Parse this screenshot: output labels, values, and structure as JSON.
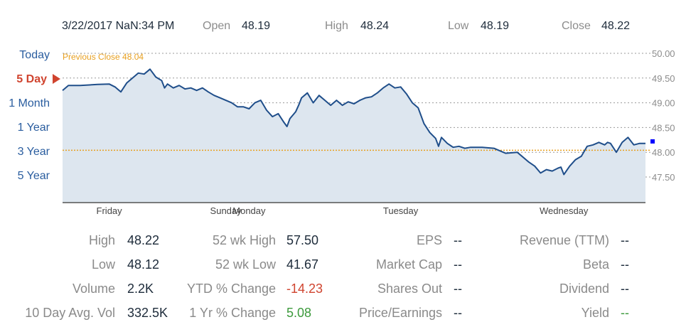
{
  "header": {
    "datetime": "3/22/2017 NaN:34 PM",
    "open_label": "Open",
    "open_value": "48.19",
    "high_label": "High",
    "high_value": "48.24",
    "low_label": "Low",
    "low_value": "48.19",
    "close_label": "Close",
    "close_value": "48.22"
  },
  "ranges": [
    {
      "label": "Today",
      "active": false
    },
    {
      "label": "5 Day",
      "active": true
    },
    {
      "label": "1 Month",
      "active": false
    },
    {
      "label": "1 Year",
      "active": false
    },
    {
      "label": "3 Year",
      "active": false
    },
    {
      "label": "5 Year",
      "active": false
    }
  ],
  "colors": {
    "line": "#1f4e8a",
    "area": "#dde6ef",
    "previous_close": "#e8a020",
    "active_range": "#d0442f",
    "range_text": "#2a5d9f",
    "current_marker": "#0000ff",
    "negative": "#d0442f",
    "positive": "#3c9a3c"
  },
  "chart_data": {
    "type": "area",
    "previous_close_label": "Previous Close 48.04",
    "previous_close": 48.04,
    "ylim": [
      47.3,
      50.0
    ],
    "yticks": [
      "50.00",
      "49.50",
      "49.00",
      "48.50",
      "48.00",
      "47.50"
    ],
    "xticks": [
      {
        "label": "Friday",
        "x": 0.08
      },
      {
        "label": "Sunday",
        "x": 0.28
      },
      {
        "label": "Monday",
        "x": 0.32
      },
      {
        "label": "Tuesday",
        "x": 0.58
      },
      {
        "label": "Wednesday",
        "x": 0.86
      }
    ],
    "xlim": [
      0,
      1
    ],
    "grid": true,
    "series": [
      {
        "x": [
          0.0,
          0.01,
          0.03,
          0.06,
          0.08,
          0.09,
          0.1,
          0.11,
          0.115,
          0.12,
          0.13,
          0.14,
          0.15,
          0.16,
          0.17,
          0.175,
          0.18,
          0.19,
          0.2,
          0.21,
          0.22,
          0.23,
          0.24,
          0.25,
          0.26,
          0.27,
          0.28,
          0.29,
          0.3,
          0.31,
          0.32,
          0.33,
          0.34,
          0.35,
          0.36,
          0.37,
          0.38,
          0.385,
          0.39,
          0.4,
          0.405,
          0.41,
          0.42,
          0.43,
          0.44,
          0.45,
          0.46,
          0.47,
          0.48,
          0.49,
          0.5,
          0.51,
          0.52,
          0.53,
          0.54,
          0.55,
          0.56,
          0.57,
          0.58,
          0.59,
          0.6,
          0.61,
          0.62,
          0.63,
          0.64,
          0.645,
          0.65,
          0.66,
          0.67,
          0.68,
          0.69,
          0.7,
          0.72,
          0.74,
          0.76,
          0.78,
          0.8,
          0.81,
          0.82,
          0.83,
          0.84,
          0.85,
          0.855,
          0.86,
          0.87,
          0.88,
          0.89,
          0.9,
          0.91,
          0.92,
          0.93,
          0.935,
          0.94,
          0.95,
          0.96,
          0.97,
          0.98,
          0.99,
          1.0
        ],
        "y": [
          49.25,
          49.35,
          49.35,
          49.37,
          49.38,
          49.32,
          49.22,
          49.4,
          49.45,
          49.5,
          49.6,
          49.58,
          49.68,
          49.52,
          49.45,
          49.3,
          49.38,
          49.3,
          49.35,
          49.28,
          49.3,
          49.25,
          49.3,
          49.22,
          49.15,
          49.1,
          49.05,
          49.0,
          48.92,
          48.92,
          48.88,
          49.0,
          49.05,
          48.85,
          48.72,
          48.78,
          48.6,
          48.52,
          48.68,
          48.82,
          48.95,
          49.1,
          49.2,
          49.0,
          49.15,
          49.05,
          48.95,
          49.05,
          48.95,
          49.02,
          48.98,
          49.05,
          49.1,
          49.12,
          49.2,
          49.3,
          49.38,
          49.3,
          49.32,
          49.18,
          49.0,
          48.9,
          48.58,
          48.4,
          48.28,
          48.12,
          48.3,
          48.18,
          48.1,
          48.12,
          48.08,
          48.1,
          48.1,
          48.08,
          47.98,
          48.0,
          47.8,
          47.72,
          47.58,
          47.65,
          47.62,
          47.68,
          47.7,
          47.55,
          47.72,
          47.85,
          47.92,
          48.12,
          48.15,
          48.2,
          48.15,
          48.2,
          48.18,
          48.0,
          48.2,
          48.3,
          48.15,
          48.18,
          48.18
        ]
      }
    ],
    "current_marker_value": 48.22
  },
  "stats": {
    "col1": [
      {
        "label": "High",
        "value": "48.22"
      },
      {
        "label": "Low",
        "value": "48.12"
      },
      {
        "label": "Volume",
        "value": "2.2K"
      },
      {
        "label": "10 Day Avg. Vol",
        "value": "332.5K"
      }
    ],
    "col2": [
      {
        "label": "52 wk High",
        "value": "57.50",
        "tone": ""
      },
      {
        "label": "52 wk Low",
        "value": "41.67",
        "tone": ""
      },
      {
        "label": "YTD % Change",
        "value": "-14.23",
        "tone": "neg"
      },
      {
        "label": "1 Yr % Change",
        "value": "5.08",
        "tone": "pos"
      }
    ],
    "col3": [
      {
        "label": "EPS",
        "value": "--"
      },
      {
        "label": "Market Cap",
        "value": "--"
      },
      {
        "label": "Shares Out",
        "value": "--"
      },
      {
        "label": "Price/Earnings",
        "value": "--"
      }
    ],
    "col4": [
      {
        "label": "Revenue (TTM)",
        "value": "--",
        "tone": ""
      },
      {
        "label": "Beta",
        "value": "--",
        "tone": ""
      },
      {
        "label": "Dividend",
        "value": "--",
        "tone": ""
      },
      {
        "label": "Yield",
        "value": "--",
        "tone": "pos"
      }
    ]
  }
}
